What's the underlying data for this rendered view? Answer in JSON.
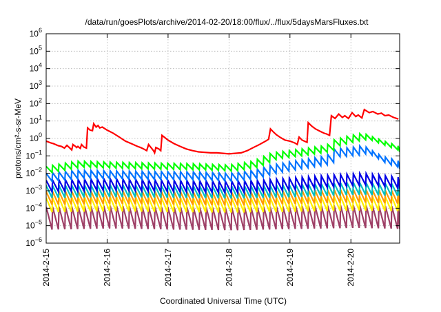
{
  "chart_data": {
    "type": "line",
    "title": "/data/run/goesPlots/archive/2014-02-20/18:00/flux/../flux/5daysMarsFluxes.txt",
    "xlabel": "Coordinated Universal Time (UTC)",
    "ylabel": "protons/cm²-s-sr-MeV",
    "y_scale": "log",
    "ylim": [
      1e-06,
      1000000.0
    ],
    "xlim": [
      0,
      5.8
    ],
    "x_tick_labels": [
      "2014-2-15",
      "2014-2-16",
      "2014-2-17",
      "2014-2-18",
      "2014-2-19",
      "2014-2-20"
    ],
    "x_tick_values": [
      0,
      1,
      2,
      3,
      4,
      5
    ],
    "y_tick_exponents": [
      -6,
      -5,
      -4,
      -3,
      -2,
      -1,
      0,
      1,
      2,
      3,
      4,
      5,
      6
    ],
    "grid": true,
    "legend": "none",
    "series": [
      {
        "color": "#ff0000",
        "sawtooth": false,
        "points": [
          [
            0.0,
            0.7
          ],
          [
            0.08,
            0.55
          ],
          [
            0.12,
            0.5
          ],
          [
            0.2,
            0.38
          ],
          [
            0.25,
            0.35
          ],
          [
            0.3,
            0.28
          ],
          [
            0.34,
            0.4
          ],
          [
            0.38,
            0.3
          ],
          [
            0.42,
            0.22
          ],
          [
            0.44,
            0.45
          ],
          [
            0.48,
            0.35
          ],
          [
            0.5,
            0.3
          ],
          [
            0.52,
            0.35
          ],
          [
            0.56,
            0.27
          ],
          [
            0.58,
            0.45
          ],
          [
            0.62,
            0.32
          ],
          [
            0.66,
            0.28
          ],
          [
            0.68,
            4.0
          ],
          [
            0.72,
            3.0
          ],
          [
            0.76,
            2.8
          ],
          [
            0.78,
            7.0
          ],
          [
            0.82,
            4.5
          ],
          [
            0.85,
            5.5
          ],
          [
            0.88,
            4.0
          ],
          [
            0.92,
            4.5
          ],
          [
            1.0,
            3.0
          ],
          [
            1.1,
            2.0
          ],
          [
            1.2,
            1.2
          ],
          [
            1.3,
            0.7
          ],
          [
            1.4,
            0.5
          ],
          [
            1.5,
            0.35
          ],
          [
            1.55,
            0.3
          ],
          [
            1.6,
            0.25
          ],
          [
            1.65,
            0.2
          ],
          [
            1.68,
            0.45
          ],
          [
            1.72,
            0.3
          ],
          [
            1.76,
            0.2
          ],
          [
            1.78,
            0.15
          ],
          [
            1.8,
            0.3
          ],
          [
            1.85,
            0.25
          ],
          [
            1.88,
            0.2
          ],
          [
            1.9,
            1.5
          ],
          [
            1.95,
            1.1
          ],
          [
            2.0,
            0.8
          ],
          [
            2.1,
            0.5
          ],
          [
            2.2,
            0.35
          ],
          [
            2.3,
            0.25
          ],
          [
            2.4,
            0.2
          ],
          [
            2.5,
            0.17
          ],
          [
            2.6,
            0.16
          ],
          [
            2.7,
            0.15
          ],
          [
            2.8,
            0.15
          ],
          [
            2.9,
            0.14
          ],
          [
            3.0,
            0.13
          ],
          [
            3.1,
            0.14
          ],
          [
            3.2,
            0.15
          ],
          [
            3.3,
            0.2
          ],
          [
            3.4,
            0.3
          ],
          [
            3.5,
            0.45
          ],
          [
            3.6,
            0.7
          ],
          [
            3.65,
            0.9
          ],
          [
            3.68,
            3.5
          ],
          [
            3.72,
            2.5
          ],
          [
            3.78,
            1.6
          ],
          [
            3.85,
            1.1
          ],
          [
            3.92,
            0.8
          ],
          [
            4.0,
            0.7
          ],
          [
            4.08,
            0.55
          ],
          [
            4.12,
            0.45
          ],
          [
            4.15,
            1.2
          ],
          [
            4.2,
            0.8
          ],
          [
            4.28,
            0.6
          ],
          [
            4.3,
            8.0
          ],
          [
            4.36,
            5.0
          ],
          [
            4.42,
            3.5
          ],
          [
            4.5,
            2.5
          ],
          [
            4.56,
            2.0
          ],
          [
            4.6,
            1.8
          ],
          [
            4.65,
            1.5
          ],
          [
            4.68,
            20.0
          ],
          [
            4.74,
            14.0
          ],
          [
            4.8,
            25.0
          ],
          [
            4.86,
            16.0
          ],
          [
            4.9,
            20.0
          ],
          [
            4.96,
            14.0
          ],
          [
            5.02,
            30.0
          ],
          [
            5.08,
            18.0
          ],
          [
            5.12,
            22.0
          ],
          [
            5.18,
            15.0
          ],
          [
            5.22,
            45.0
          ],
          [
            5.3,
            30.0
          ],
          [
            5.36,
            35.0
          ],
          [
            5.44,
            25.0
          ],
          [
            5.5,
            28.0
          ],
          [
            5.56,
            20.0
          ],
          [
            5.62,
            22.0
          ],
          [
            5.7,
            16.0
          ],
          [
            5.78,
            13.0
          ]
        ]
      },
      {
        "color": "#00ff00",
        "sawtooth": true,
        "peak_base": [
          [
            0,
            0.025
          ],
          [
            0.5,
            0.05
          ],
          [
            1.5,
            0.04
          ],
          [
            2.5,
            0.035
          ],
          [
            3.0,
            0.03
          ],
          [
            3.4,
            0.05
          ],
          [
            3.7,
            0.15
          ],
          [
            4.2,
            0.25
          ],
          [
            4.6,
            0.4
          ],
          [
            4.7,
            0.8
          ],
          [
            5.0,
            1.5
          ],
          [
            5.2,
            2.0
          ],
          [
            5.5,
            0.8
          ],
          [
            5.8,
            0.35
          ]
        ],
        "trough_ratio": 0.45,
        "step": 0.105
      },
      {
        "color": "#0073ff",
        "sawtooth": true,
        "peak_base": [
          [
            0,
            0.01
          ],
          [
            0.5,
            0.015
          ],
          [
            1.5,
            0.013
          ],
          [
            2.5,
            0.012
          ],
          [
            3.0,
            0.01
          ],
          [
            3.4,
            0.015
          ],
          [
            3.7,
            0.03
          ],
          [
            4.2,
            0.06
          ],
          [
            4.6,
            0.1
          ],
          [
            4.7,
            0.25
          ],
          [
            5.0,
            0.3
          ],
          [
            5.2,
            0.4
          ],
          [
            5.5,
            0.1
          ],
          [
            5.8,
            0.05
          ]
        ],
        "trough_ratio": 0.35,
        "step": 0.105
      },
      {
        "color": "#0000e6",
        "sawtooth": true,
        "peak_base": [
          [
            0,
            0.004
          ],
          [
            1.0,
            0.005
          ],
          [
            2.0,
            0.004
          ],
          [
            3.0,
            0.0035
          ],
          [
            3.5,
            0.004
          ],
          [
            4.2,
            0.006
          ],
          [
            4.7,
            0.008
          ],
          [
            5.2,
            0.01
          ],
          [
            5.8,
            0.006
          ]
        ],
        "trough_ratio": 0.22,
        "step": 0.105
      },
      {
        "color": "#00bfbf",
        "sawtooth": true,
        "peak_base": [
          [
            0,
            0.002
          ],
          [
            1.0,
            0.0022
          ],
          [
            2.0,
            0.002
          ],
          [
            3.0,
            0.0018
          ],
          [
            4.0,
            0.0022
          ],
          [
            5.0,
            0.003
          ],
          [
            5.8,
            0.0025
          ]
        ],
        "trough_ratio": 0.2,
        "step": 0.105
      },
      {
        "color": "#ff9900",
        "sawtooth": true,
        "peak_base": [
          [
            0,
            0.0009
          ],
          [
            1.0,
            0.001
          ],
          [
            2.0,
            0.0009
          ],
          [
            3.0,
            0.0008
          ],
          [
            4.0,
            0.001
          ],
          [
            5.0,
            0.0012
          ],
          [
            5.8,
            0.001
          ]
        ],
        "trough_ratio": 0.18,
        "step": 0.105
      },
      {
        "color": "#ffee00",
        "sawtooth": true,
        "peak_base": [
          [
            0,
            0.0004
          ],
          [
            1.0,
            0.00045
          ],
          [
            2.0,
            0.0004
          ],
          [
            3.0,
            0.00038
          ],
          [
            4.0,
            0.00042
          ],
          [
            5.0,
            0.0005
          ],
          [
            5.8,
            0.00045
          ]
        ],
        "trough_ratio": 0.15,
        "step": 0.105
      },
      {
        "color": "#9e3f66",
        "sawtooth": true,
        "peak_base": [
          [
            0,
            0.00012
          ],
          [
            1.0,
            0.00014
          ],
          [
            2.0,
            0.00012
          ],
          [
            3.0,
            0.00011
          ],
          [
            4.0,
            0.00013
          ],
          [
            5.0,
            0.00015
          ],
          [
            5.8,
            0.00013
          ]
        ],
        "trough_ratio": 0.05,
        "step": 0.105
      }
    ]
  }
}
